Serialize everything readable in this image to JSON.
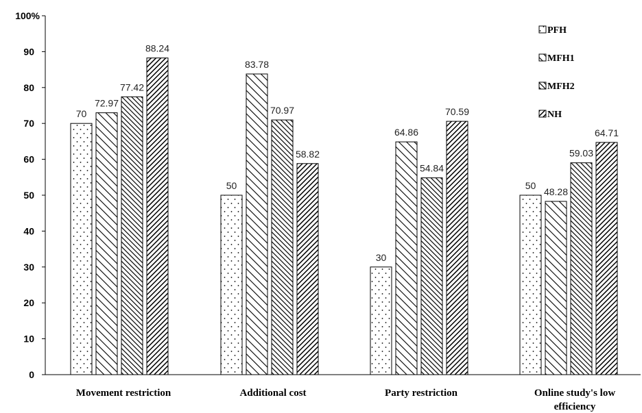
{
  "chart_data": {
    "type": "bar",
    "title": "",
    "xlabel": "",
    "ylabel": "",
    "y_axis_top_label": "100%",
    "ylim": [
      0,
      100
    ],
    "yticks": [
      0,
      10,
      20,
      30,
      40,
      50,
      60,
      70,
      80,
      90
    ],
    "grid": false,
    "legend_position": "top-right",
    "categories": [
      "Movement restriction",
      "Additional cost",
      "Party restriction",
      "Online study's low efficiency"
    ],
    "series": [
      {
        "name": "PFH",
        "pattern": "dots",
        "values": [
          70,
          50,
          30,
          50
        ]
      },
      {
        "name": "MFH1",
        "pattern": "thin-diagonal",
        "values": [
          72.97,
          83.78,
          64.86,
          48.28
        ]
      },
      {
        "name": "MFH2",
        "pattern": "thick-diagonal",
        "values": [
          77.42,
          70.97,
          54.84,
          59.03
        ]
      },
      {
        "name": "NH",
        "pattern": "dense-back-diagonal",
        "values": [
          88.24,
          58.82,
          70.59,
          64.71
        ]
      }
    ],
    "data_labels": [
      [
        "70",
        "72.97",
        "77.42",
        "88.24"
      ],
      [
        "50",
        "83.78",
        "70.97",
        "58.82"
      ],
      [
        "30",
        "64.86",
        "54.84",
        "70.59"
      ],
      [
        "50",
        "48.28",
        "59.03",
        "64.71"
      ]
    ]
  }
}
